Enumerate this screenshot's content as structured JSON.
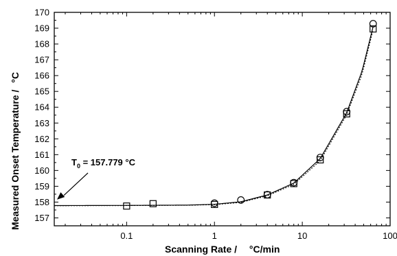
{
  "chart_data": {
    "type": "scatter",
    "xscale": "log",
    "xlim": [
      0.015,
      100
    ],
    "ylim": [
      156.5,
      170
    ],
    "grid": false,
    "xlabel": "Scanning Rate /",
    "xlabel_unit": "°C/min",
    "ylabel": "Measured Onset Temperature /",
    "ylabel_unit": "°C",
    "x_ticks": [
      {
        "value": 0.1,
        "label": "0.1"
      },
      {
        "value": 1,
        "label": "1"
      },
      {
        "value": 10,
        "label": "10"
      },
      {
        "value": 100,
        "label": "100"
      }
    ],
    "y_ticks": [
      157,
      158,
      159,
      160,
      161,
      162,
      163,
      164,
      165,
      166,
      167,
      168,
      169,
      170
    ],
    "series": [
      {
        "marker": "circle",
        "x": [
          1,
          2,
          4,
          8,
          16,
          32,
          64
        ],
        "y": [
          157.93,
          158.13,
          158.47,
          159.23,
          160.82,
          163.72,
          169.28
        ]
      },
      {
        "marker": "square",
        "x": [
          0.1,
          0.2,
          1,
          4,
          8,
          16,
          32,
          64
        ],
        "y": [
          157.75,
          157.9,
          157.85,
          158.45,
          159.17,
          160.67,
          163.58,
          168.95
        ]
      }
    ],
    "fits": [
      {
        "style": "solid",
        "T0": 157.779,
        "x": [
          0.015,
          0.1,
          0.5,
          1,
          2,
          4,
          8,
          16,
          32,
          48,
          64
        ],
        "y": [
          157.78,
          157.79,
          157.81,
          157.86,
          158.02,
          158.45,
          159.2,
          160.75,
          163.65,
          166.3,
          169.1
        ]
      },
      {
        "style": "dotted",
        "x": [
          0.015,
          0.1,
          0.5,
          1,
          2,
          4,
          8,
          16,
          32,
          48,
          64
        ],
        "y": [
          157.77,
          157.78,
          157.8,
          157.84,
          157.98,
          158.4,
          159.12,
          160.62,
          163.52,
          166.1,
          168.9
        ]
      }
    ],
    "annotation": {
      "text_T": "T",
      "text_sub": "0",
      "text_value": " = 157.779 °C",
      "arrow_to": {
        "x": 0.015,
        "y": 157.9
      }
    }
  }
}
